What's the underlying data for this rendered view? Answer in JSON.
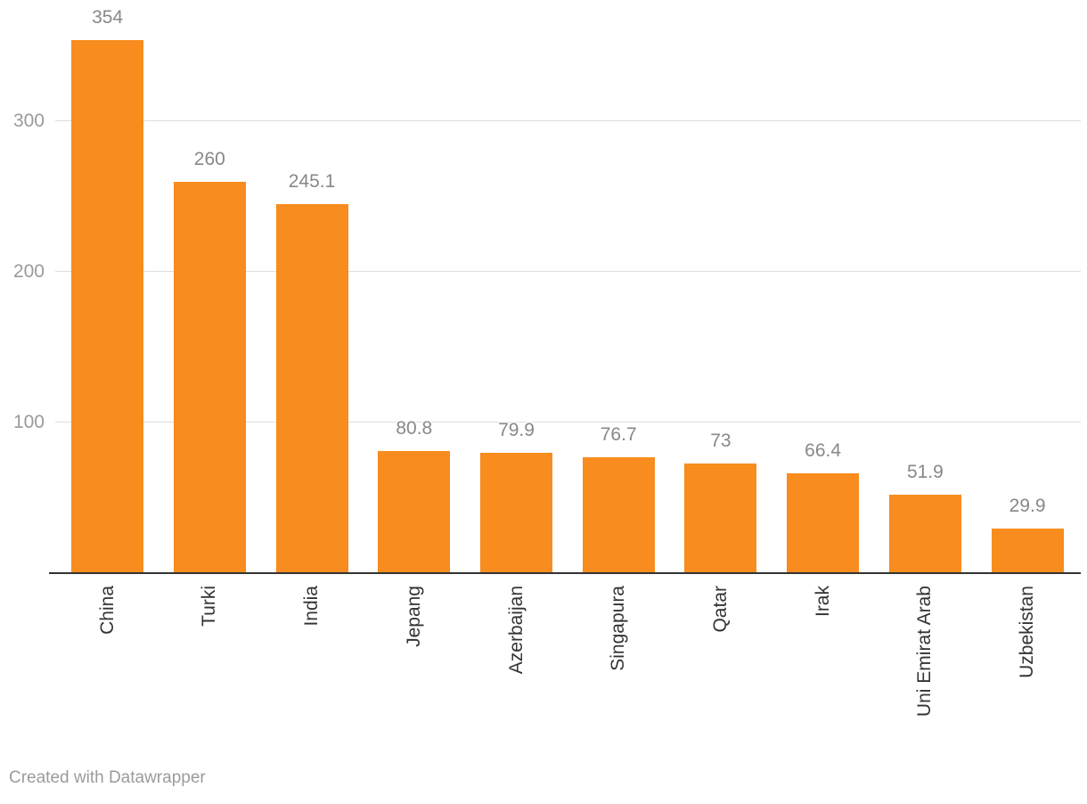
{
  "chart_data": {
    "type": "bar",
    "categories": [
      "China",
      "Turki",
      "India",
      "Jepang",
      "Azerbaijan",
      "Singapura",
      "Qatar",
      "Irak",
      "Uni Emirat Arab",
      "Uzbekistan"
    ],
    "values": [
      354,
      260,
      245.1,
      80.8,
      79.9,
      76.7,
      73,
      66.4,
      51.9,
      29.9
    ],
    "bar_labels": [
      "354",
      "260",
      "245.1",
      "80.8",
      "79.9",
      "76.7",
      "73",
      "66.4",
      "51.9",
      "29.9"
    ],
    "y_tick_values": [
      100,
      200,
      300
    ],
    "y_tick_labels": [
      "100",
      "200",
      "300"
    ],
    "ylim": [
      0,
      380
    ],
    "grid": true,
    "legend": "none",
    "title": "",
    "xlabel": "",
    "ylabel": "",
    "category_label_rotation": -90
  },
  "colors": {
    "background": "#FFFFFF",
    "bar": "#F88C1E",
    "gridline": "#DEDEDE",
    "axis_line": "#333333",
    "value_label": "#888888",
    "y_tick_label": "#9A9A9A",
    "category_label": "#333333",
    "footer_text": "#9B9B9B"
  },
  "footer": {
    "credit": "Created with Datawrapper"
  }
}
